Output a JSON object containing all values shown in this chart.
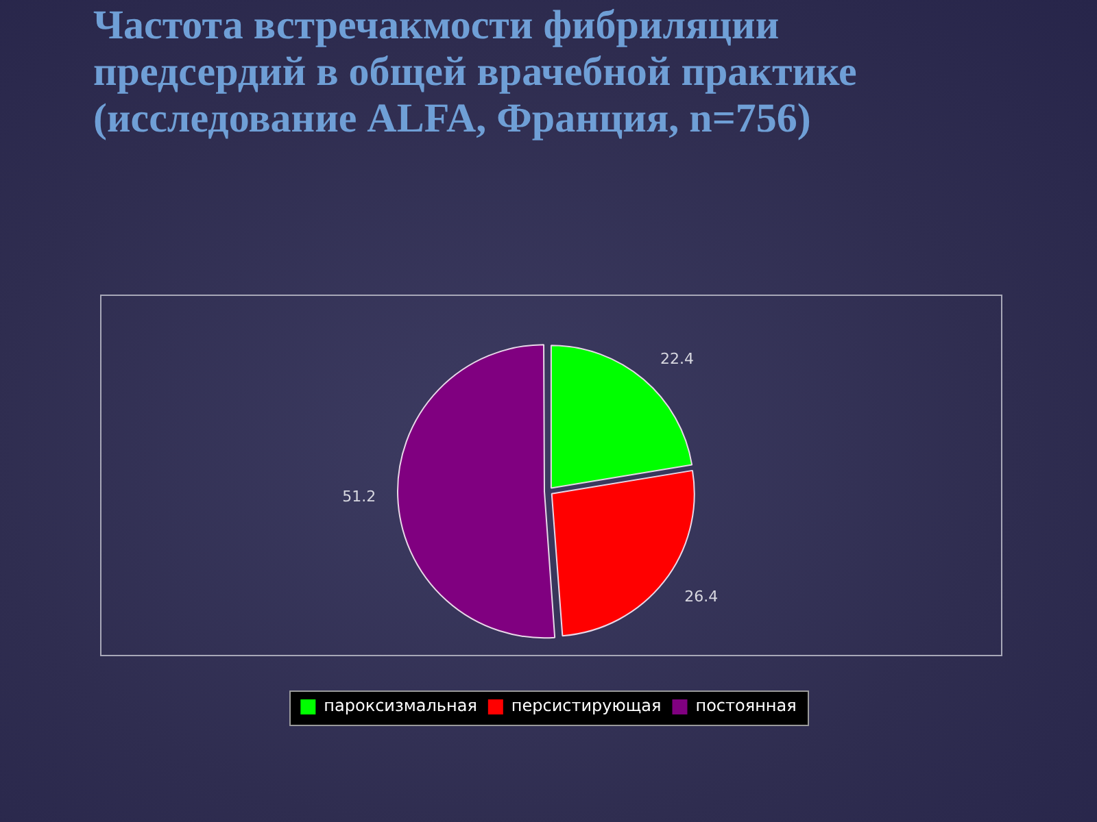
{
  "chart_data": {
    "type": "pie",
    "title": "Частота встречакмости фибриляции предсердий в общей врачебной практике (исследование ALFA, Франция, n=756)",
    "categories": [
      "пароксизмальная",
      "персистирующая",
      "постоянная"
    ],
    "values": [
      22.4,
      26.4,
      51.2
    ],
    "colors": [
      "#00ff00",
      "#ff0000",
      "#800080"
    ],
    "data_labels": true,
    "legend": "bottom"
  }
}
